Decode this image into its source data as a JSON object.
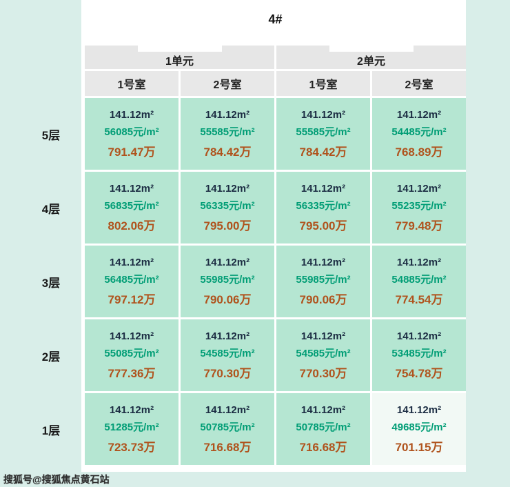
{
  "page": {
    "title": "4#",
    "watermark": "搜狐号@搜狐焦点黄石站"
  },
  "chart_data": {
    "type": "table",
    "title": "4#",
    "unit_headers": [
      "1单元",
      "2单元"
    ],
    "room_headers": [
      "1号室",
      "2号室",
      "1号室",
      "2号室"
    ],
    "rows": [
      {
        "floor": "5层",
        "cells": [
          {
            "area": "141.12m²",
            "unit_price": "56085元/m²",
            "total": "791.47万"
          },
          {
            "area": "141.12m²",
            "unit_price": "55585元/m²",
            "total": "784.42万"
          },
          {
            "area": "141.12m²",
            "unit_price": "55585元/m²",
            "total": "784.42万"
          },
          {
            "area": "141.12m²",
            "unit_price": "54485元/m²",
            "total": "768.89万"
          }
        ]
      },
      {
        "floor": "4层",
        "cells": [
          {
            "area": "141.12m²",
            "unit_price": "56835元/m²",
            "total": "802.06万"
          },
          {
            "area": "141.12m²",
            "unit_price": "56335元/m²",
            "total": "795.00万"
          },
          {
            "area": "141.12m²",
            "unit_price": "56335元/m²",
            "total": "795.00万"
          },
          {
            "area": "141.12m²",
            "unit_price": "55235元/m²",
            "total": "779.48万"
          }
        ]
      },
      {
        "floor": "3层",
        "cells": [
          {
            "area": "141.12m²",
            "unit_price": "56485元/m²",
            "total": "797.12万"
          },
          {
            "area": "141.12m²",
            "unit_price": "55985元/m²",
            "total": "790.06万"
          },
          {
            "area": "141.12m²",
            "unit_price": "55985元/m²",
            "total": "790.06万"
          },
          {
            "area": "141.12m²",
            "unit_price": "54885元/m²",
            "total": "774.54万"
          }
        ]
      },
      {
        "floor": "2层",
        "cells": [
          {
            "area": "141.12m²",
            "unit_price": "55085元/m²",
            "total": "777.36万"
          },
          {
            "area": "141.12m²",
            "unit_price": "54585元/m²",
            "total": "770.30万"
          },
          {
            "area": "141.12m²",
            "unit_price": "54585元/m²",
            "total": "770.30万"
          },
          {
            "area": "141.12m²",
            "unit_price": "53485元/m²",
            "total": "754.78万"
          }
        ]
      },
      {
        "floor": "1层",
        "cells": [
          {
            "area": "141.12m²",
            "unit_price": "51285元/m²",
            "total": "723.73万"
          },
          {
            "area": "141.12m²",
            "unit_price": "50785元/m²",
            "total": "716.68万"
          },
          {
            "area": "141.12m²",
            "unit_price": "50785元/m²",
            "total": "716.68万"
          },
          {
            "area": "141.12m²",
            "unit_price": "49685元/m²",
            "total": "701.15万"
          }
        ]
      }
    ]
  },
  "colors": {
    "page_bg": "#d9eee9",
    "panel_bg": "#ffffff",
    "header_bg": "#e6e6e6",
    "cell_bg": "#b5e6d2",
    "highlight_cell_bg": "#f2f9f5",
    "area_text": "#1b2c42",
    "unit_price_text": "#009d75",
    "total_text": "#b0531d"
  }
}
